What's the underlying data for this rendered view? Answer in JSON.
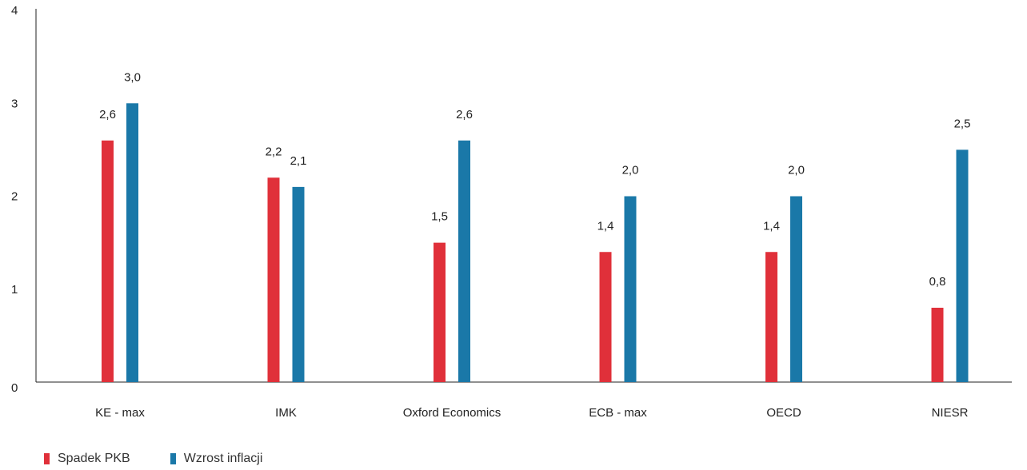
{
  "chart_data": {
    "type": "bar",
    "categories": [
      "KE - max",
      "IMK",
      "Oxford Economics",
      "ECB - max",
      "OECD",
      "NIESR"
    ],
    "series": [
      {
        "name": "Spadek PKB",
        "color": "#e0303a",
        "values": [
          2.6,
          2.2,
          1.5,
          1.4,
          1.4,
          0.8
        ],
        "labels": [
          "2,6",
          "2,2",
          "1,5",
          "1,4",
          "1,4",
          "0,8"
        ]
      },
      {
        "name": "Wzrost inflacji",
        "color": "#1a78a8",
        "values": [
          3.0,
          2.1,
          2.6,
          2.0,
          2.0,
          2.5
        ],
        "labels": [
          "3,0",
          "2,1",
          "2,6",
          "2,0",
          "2,0",
          "2,5"
        ]
      }
    ],
    "ylim": [
      0,
      4
    ],
    "yticks": [
      "0",
      "1",
      "2",
      "3",
      "4"
    ],
    "title": "",
    "xlabel": "",
    "ylabel": "",
    "grid": false,
    "legend_position": "bottom-left"
  },
  "legend": {
    "items": [
      {
        "label": "Spadek PKB",
        "color": "#e0303a"
      },
      {
        "label": "Wzrost inflacji",
        "color": "#1a78a8"
      }
    ]
  }
}
